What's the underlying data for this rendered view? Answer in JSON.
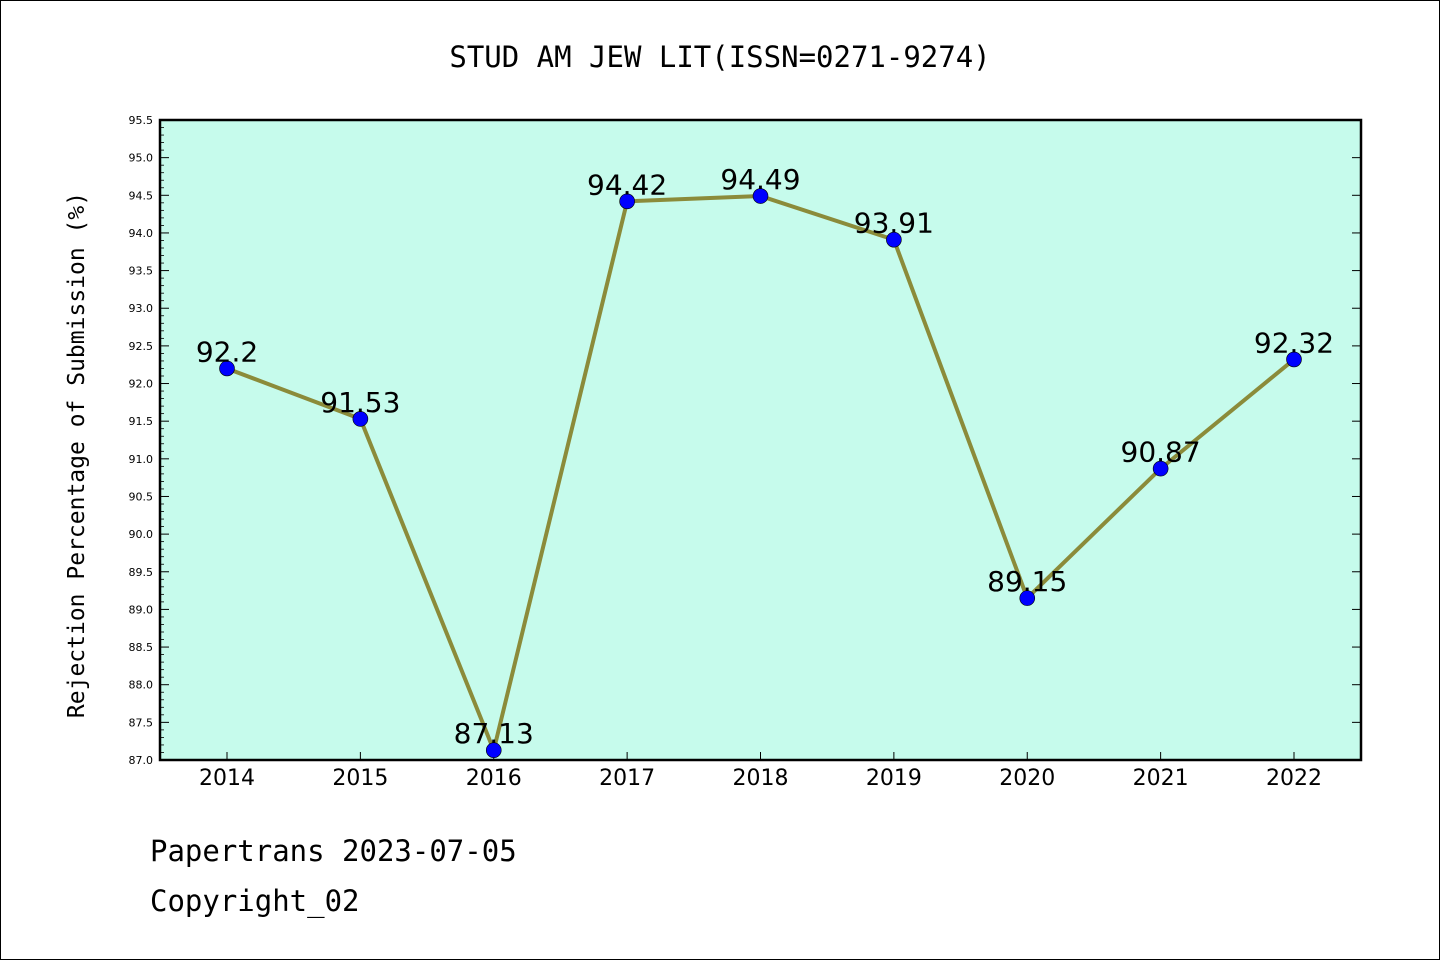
{
  "chart_data": {
    "type": "line",
    "title": "STUD AM JEW LIT(ISSN=0271-9274)",
    "ylabel": "Rejection Percentage of Submission (%)",
    "xlabel": "",
    "x": [
      "2014",
      "2015",
      "2016",
      "2017",
      "2018",
      "2019",
      "2020",
      "2021",
      "2022"
    ],
    "series": [
      {
        "values": [
          92.2,
          91.53,
          87.13,
          94.42,
          94.49,
          93.91,
          89.15,
          90.87,
          92.32
        ],
        "labels": [
          "92.2",
          "91.53",
          "87.13",
          "94.42",
          "94.49",
          "93.91",
          "89.15",
          "90.87",
          "92.32"
        ]
      }
    ],
    "ylim": [
      87.0,
      95.5
    ],
    "yticks": [
      "87.0",
      "87.5",
      "88.0",
      "88.5",
      "89.0",
      "89.5",
      "90.0",
      "90.5",
      "91.0",
      "91.5",
      "92.0",
      "92.5",
      "93.0",
      "93.5",
      "94.0",
      "94.5",
      "95.0",
      "95.5"
    ],
    "grid": false,
    "colors": {
      "plot_background": "#c6fbec",
      "line": "#8b8b3a",
      "marker": "#0000ff"
    }
  },
  "footer": {
    "source": "Papertrans 2023-07-05",
    "copyright": "Copyright_02"
  }
}
